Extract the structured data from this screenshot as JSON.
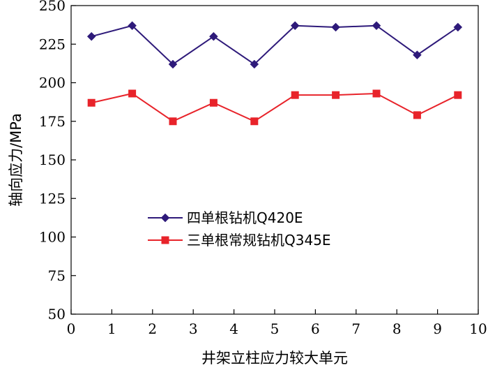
{
  "chart_data": {
    "type": "line",
    "xlabel": "井架立柱应力较大单元",
    "ylabel": "轴向应力/MPa",
    "xlim": [
      0,
      10
    ],
    "ylim": [
      50,
      250
    ],
    "xticks": [
      0,
      1,
      2,
      3,
      4,
      5,
      6,
      7,
      8,
      9,
      10
    ],
    "yticks": [
      50,
      75,
      100,
      125,
      150,
      175,
      200,
      225,
      250
    ],
    "x": [
      0.5,
      1.5,
      2.5,
      3.5,
      4.5,
      5.5,
      6.5,
      7.5,
      8.5,
      9.5
    ],
    "grid": false,
    "legend_position": "center-left",
    "series": [
      {
        "name": "四单根钻机Q420E",
        "values": [
          230,
          237,
          212,
          230,
          212,
          237,
          236,
          237,
          218,
          236
        ],
        "color": "#2e1a7a",
        "marker": "diamond"
      },
      {
        "name": "三单根常规钻机Q345E",
        "values": [
          187,
          193,
          175,
          187,
          175,
          192,
          192,
          193,
          179,
          192
        ],
        "color": "#e8232a",
        "marker": "square"
      }
    ]
  }
}
